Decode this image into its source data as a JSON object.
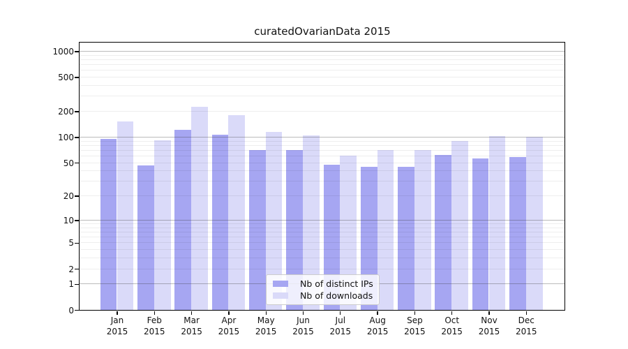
{
  "figure": {
    "background": "#ffffff"
  },
  "chart_data": {
    "type": "bar",
    "title": "curatedOvarianData 2015",
    "scale": "log1p",
    "grid": "on (minor + major decade lines, drawn over bars)",
    "legend_position": "lower center",
    "categories": [
      "Jan",
      "Feb",
      "Mar",
      "Apr",
      "May",
      "Jun",
      "Jul",
      "Aug",
      "Sep",
      "Oct",
      "Nov",
      "Dec"
    ],
    "year": "2015",
    "series": [
      {
        "name": "Nb of distinct IPs",
        "color": "#a6a6f2",
        "values": [
          95,
          46,
          122,
          107,
          70,
          71,
          47,
          45,
          45,
          62,
          56,
          58
        ]
      },
      {
        "name": "Nb of downloads",
        "color": "#dadaf9",
        "values": [
          153,
          91,
          226,
          179,
          115,
          105,
          61,
          71,
          71,
          90,
          102,
          100
        ]
      }
    ],
    "xlabel": "",
    "ylabel": "",
    "yticks": [
      0,
      1,
      2,
      5,
      10,
      20,
      50,
      100,
      200,
      500,
      1000
    ],
    "ylim": [
      0,
      1260
    ],
    "gridlines": {
      "major": [
        1,
        10,
        100,
        1000
      ],
      "minor": [
        2,
        3,
        4,
        5,
        6,
        7,
        8,
        9,
        20,
        30,
        40,
        50,
        60,
        70,
        80,
        90,
        200,
        300,
        400,
        500,
        600,
        700,
        800,
        900
      ]
    },
    "colors": {
      "grid_major": "rgba(60,60,60,0.35)",
      "grid_minor": "rgba(0,0,0,0.065)",
      "axis": "#000000",
      "text": "#111111"
    }
  }
}
